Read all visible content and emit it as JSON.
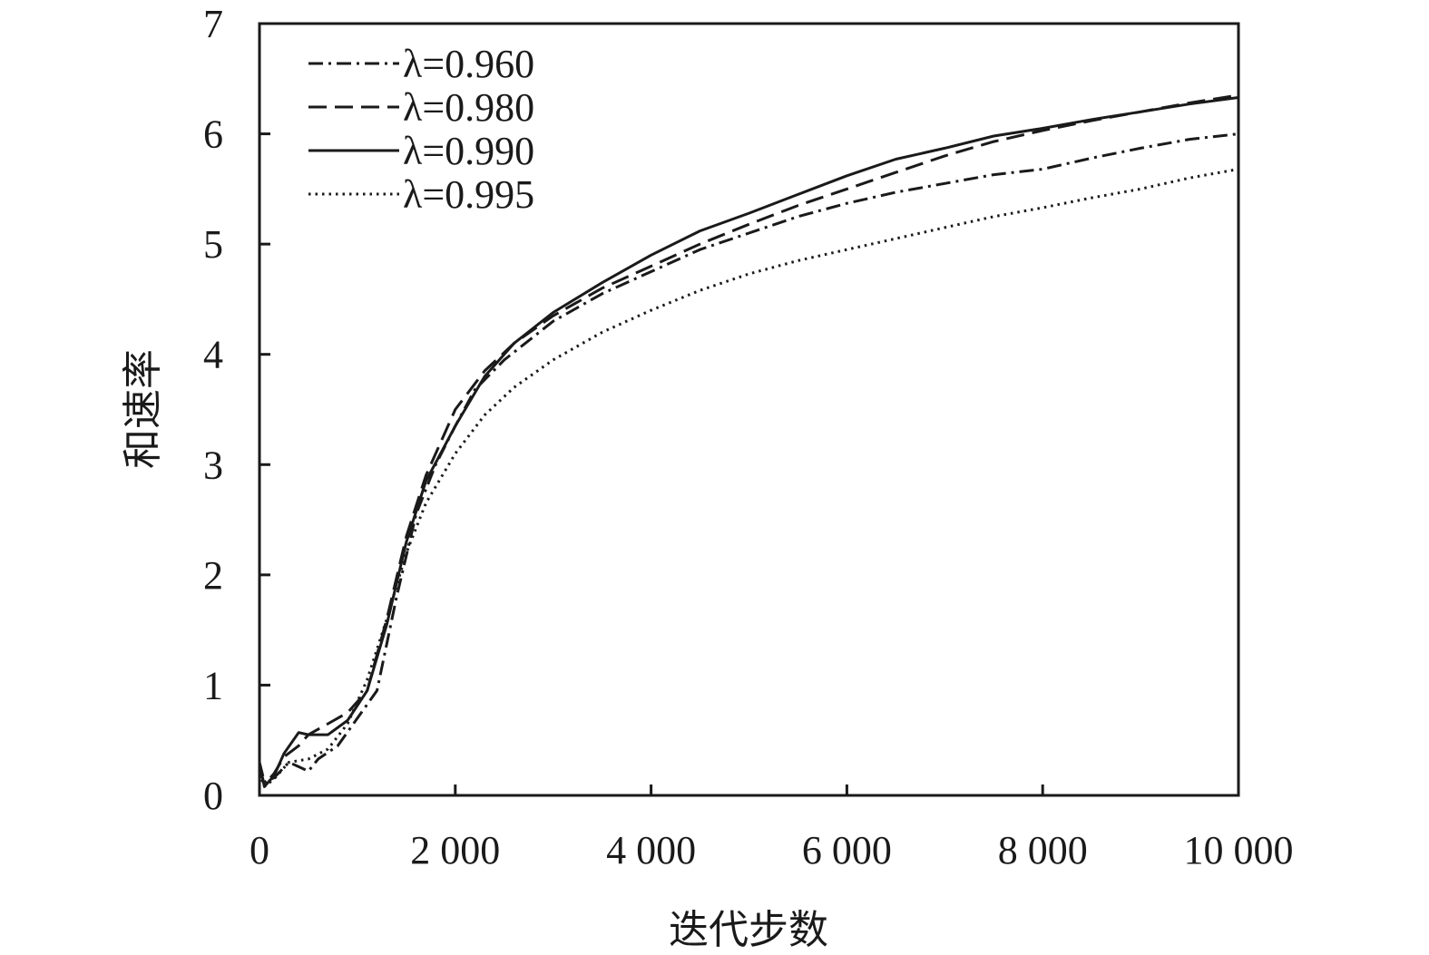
{
  "chart_data": {
    "type": "line",
    "title": "",
    "xlabel": "迭代步数",
    "ylabel": "和速率",
    "xlim": [
      0,
      10000
    ],
    "ylim": [
      0,
      7
    ],
    "x_ticks": [
      0,
      2000,
      4000,
      6000,
      8000,
      10000
    ],
    "x_tick_labels": [
      "0",
      "2 000",
      "4 000",
      "6 000",
      "8 000",
      "10 000"
    ],
    "y_ticks": [
      0,
      1,
      2,
      3,
      4,
      5,
      6,
      7
    ],
    "y_tick_labels": [
      "0",
      "1",
      "2",
      "3",
      "4",
      "5",
      "6",
      "7"
    ],
    "grid": false,
    "legend_position": "top-left",
    "series": [
      {
        "name": "λ=0.960",
        "dash": "dash-dot",
        "points": [
          [
            0,
            0.3
          ],
          [
            50,
            0.12
          ],
          [
            150,
            0.16
          ],
          [
            300,
            0.3
          ],
          [
            400,
            0.26
          ],
          [
            500,
            0.22
          ],
          [
            600,
            0.33
          ],
          [
            800,
            0.45
          ],
          [
            1000,
            0.7
          ],
          [
            1200,
            0.95
          ],
          [
            1400,
            1.8
          ],
          [
            1600,
            2.55
          ],
          [
            1800,
            3.0
          ],
          [
            2000,
            3.35
          ],
          [
            2200,
            3.68
          ],
          [
            2500,
            3.95
          ],
          [
            3000,
            4.3
          ],
          [
            3500,
            4.55
          ],
          [
            4000,
            4.75
          ],
          [
            4500,
            4.95
          ],
          [
            5000,
            5.1
          ],
          [
            5500,
            5.25
          ],
          [
            6000,
            5.37
          ],
          [
            6500,
            5.47
          ],
          [
            7000,
            5.55
          ],
          [
            7500,
            5.63
          ],
          [
            8000,
            5.68
          ],
          [
            8500,
            5.78
          ],
          [
            9000,
            5.87
          ],
          [
            9500,
            5.95
          ],
          [
            10000,
            6.0
          ]
        ]
      },
      {
        "name": "λ=0.980",
        "dash": "dashed",
        "points": [
          [
            0,
            0.25
          ],
          [
            50,
            0.1
          ],
          [
            150,
            0.2
          ],
          [
            250,
            0.35
          ],
          [
            400,
            0.45
          ],
          [
            500,
            0.55
          ],
          [
            700,
            0.65
          ],
          [
            900,
            0.75
          ],
          [
            1100,
            0.95
          ],
          [
            1300,
            1.6
          ],
          [
            1500,
            2.35
          ],
          [
            1700,
            2.9
          ],
          [
            2000,
            3.5
          ],
          [
            2300,
            3.85
          ],
          [
            2600,
            4.1
          ],
          [
            3000,
            4.35
          ],
          [
            3500,
            4.6
          ],
          [
            4000,
            4.8
          ],
          [
            4500,
            5.0
          ],
          [
            5000,
            5.18
          ],
          [
            5500,
            5.35
          ],
          [
            6000,
            5.5
          ],
          [
            6500,
            5.65
          ],
          [
            7000,
            5.8
          ],
          [
            7500,
            5.93
          ],
          [
            8000,
            6.03
          ],
          [
            8500,
            6.12
          ],
          [
            9000,
            6.2
          ],
          [
            9500,
            6.28
          ],
          [
            10000,
            6.35
          ]
        ]
      },
      {
        "name": "λ=0.990",
        "dash": "solid",
        "points": [
          [
            0,
            0.28
          ],
          [
            50,
            0.08
          ],
          [
            150,
            0.18
          ],
          [
            250,
            0.38
          ],
          [
            400,
            0.57
          ],
          [
            500,
            0.55
          ],
          [
            700,
            0.55
          ],
          [
            900,
            0.68
          ],
          [
            1100,
            0.95
          ],
          [
            1300,
            1.55
          ],
          [
            1500,
            2.3
          ],
          [
            1700,
            2.85
          ],
          [
            2000,
            3.35
          ],
          [
            2300,
            3.8
          ],
          [
            2600,
            4.1
          ],
          [
            3000,
            4.38
          ],
          [
            3500,
            4.65
          ],
          [
            4000,
            4.9
          ],
          [
            4500,
            5.12
          ],
          [
            5000,
            5.28
          ],
          [
            5500,
            5.45
          ],
          [
            6000,
            5.62
          ],
          [
            6500,
            5.77
          ],
          [
            7000,
            5.87
          ],
          [
            7500,
            5.98
          ],
          [
            8000,
            6.05
          ],
          [
            8500,
            6.13
          ],
          [
            9000,
            6.2
          ],
          [
            9500,
            6.27
          ],
          [
            10000,
            6.33
          ]
        ]
      },
      {
        "name": "λ=0.995",
        "dash": "dotted",
        "points": [
          [
            0,
            0.2
          ],
          [
            50,
            0.08
          ],
          [
            150,
            0.15
          ],
          [
            300,
            0.3
          ],
          [
            500,
            0.33
          ],
          [
            700,
            0.42
          ],
          [
            900,
            0.65
          ],
          [
            1100,
            1.05
          ],
          [
            1300,
            1.6
          ],
          [
            1500,
            2.2
          ],
          [
            1700,
            2.65
          ],
          [
            2000,
            3.1
          ],
          [
            2300,
            3.45
          ],
          [
            2600,
            3.7
          ],
          [
            3000,
            3.95
          ],
          [
            3500,
            4.2
          ],
          [
            4000,
            4.4
          ],
          [
            4500,
            4.58
          ],
          [
            5000,
            4.73
          ],
          [
            5500,
            4.85
          ],
          [
            6000,
            4.95
          ],
          [
            6500,
            5.05
          ],
          [
            7000,
            5.15
          ],
          [
            7500,
            5.25
          ],
          [
            8000,
            5.33
          ],
          [
            8500,
            5.42
          ],
          [
            9000,
            5.5
          ],
          [
            9500,
            5.6
          ],
          [
            10000,
            5.68
          ]
        ]
      }
    ]
  }
}
